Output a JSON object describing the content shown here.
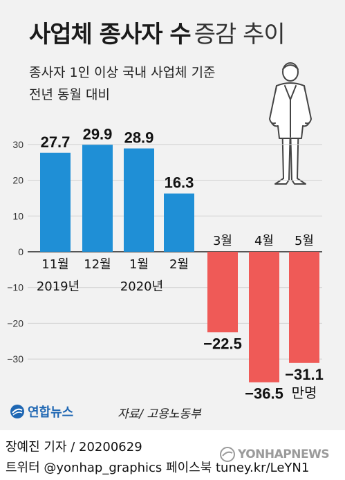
{
  "header": {
    "title_bold": "사업체 종사자 수",
    "title_light": "증감 추이",
    "subtitle_line1": "종사자 1인 이상 국내 사업체 기준",
    "subtitle_line2": "전년 동월 대비"
  },
  "chart_data": {
    "type": "bar",
    "categories": [
      "11월",
      "12월",
      "1월",
      "2월",
      "3월",
      "4월",
      "5월"
    ],
    "year_labels": [
      {
        "text": "2019년",
        "category_index": 0
      },
      {
        "text": "2020년",
        "category_index": 2
      }
    ],
    "values": [
      27.7,
      29.9,
      28.9,
      16.3,
      -22.5,
      -36.5,
      -31.1
    ],
    "value_labels": [
      "27.7",
      "29.9",
      "28.9",
      "16.3",
      "-22.5",
      "-36.5",
      "-31.1"
    ],
    "unit": "만명",
    "y_ticks": [
      30,
      20,
      10,
      0,
      -10,
      -20,
      -30
    ],
    "ylim": [
      -37,
      31
    ],
    "colors": {
      "positive": "#1f8fd6",
      "negative": "#ef5a57"
    }
  },
  "source": "자료/ 고용노동부",
  "logo": {
    "text": "연합뉴스",
    "icon": "yonhap-globe-icon"
  },
  "footer": {
    "byline": "장예진 기자 / 20200629",
    "social": "트위터 @yonhap_graphics  페이스북 tuney.kr/LeYN1"
  },
  "watermark": {
    "text": "YONHAPNEWS",
    "icon": "yonhap-globe-icon"
  },
  "illustration": {
    "icon": "businessman-icon"
  }
}
